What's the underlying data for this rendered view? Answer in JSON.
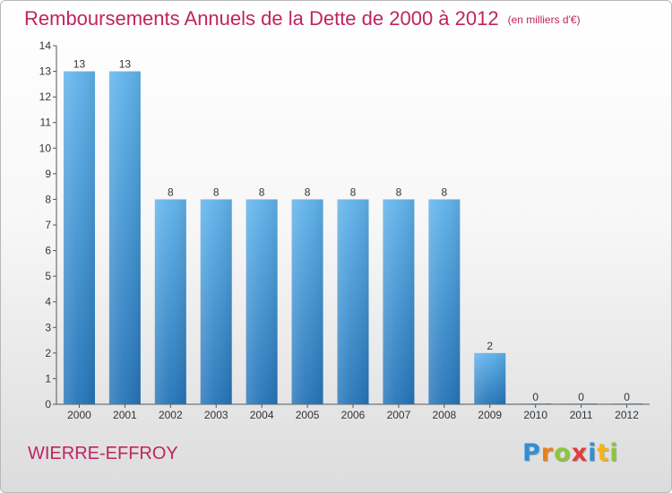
{
  "header": {
    "title": "Remboursements Annuels de la Dette de 2000 à 2012",
    "subtitle": "(en milliers d'€)"
  },
  "footer": {
    "commune": "WIERRE-EFFROY",
    "brand_letters": [
      {
        "char": "P",
        "color": "#2f8fd8"
      },
      {
        "char": "r",
        "color": "#e87f1c"
      },
      {
        "char": "o",
        "color": "#8cc63f"
      },
      {
        "char": "x",
        "color": "#e33b3b"
      },
      {
        "char": "i",
        "color": "#2f8fd8"
      },
      {
        "char": "t",
        "color": "#f2b51b"
      },
      {
        "char": "i",
        "color": "#8cc63f"
      }
    ]
  },
  "colors": {
    "title": "#c0245f",
    "bar_top": "#5fb2ea",
    "bar_bottom": "#2574b8",
    "axis": "#555555"
  },
  "chart_data": {
    "type": "bar",
    "title": "Remboursements Annuels de la Dette de 2000 à 2012",
    "subtitle": "(en milliers d'€)",
    "categories": [
      "2000",
      "2001",
      "2002",
      "2003",
      "2004",
      "2005",
      "2006",
      "2007",
      "2008",
      "2009",
      "2010",
      "2011",
      "2012"
    ],
    "values": [
      13,
      13,
      8,
      8,
      8,
      8,
      8,
      8,
      8,
      2,
      0,
      0,
      0
    ],
    "ylim": [
      0,
      14
    ],
    "yticks": [
      0,
      1,
      2,
      3,
      4,
      5,
      6,
      7,
      8,
      9,
      10,
      11,
      12,
      13,
      14
    ],
    "grid": false,
    "data_labels": true
  }
}
